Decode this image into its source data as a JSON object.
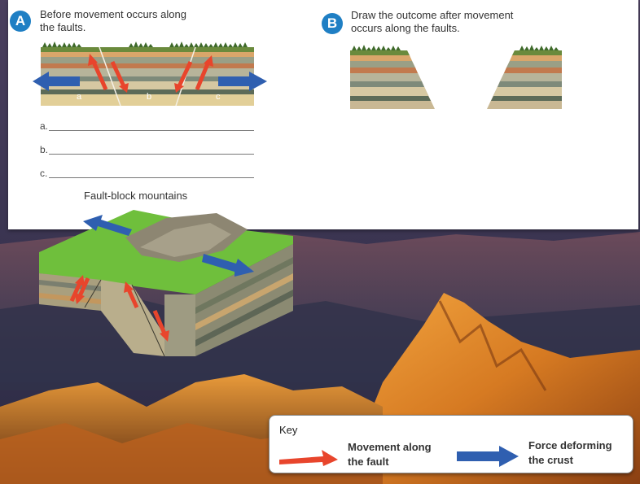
{
  "section_a": {
    "badge": "A",
    "instruction_line1": "Before movement occurs along",
    "instruction_line2": "the faults.",
    "fault_labels": [
      "a",
      "b",
      "c"
    ],
    "answer_labels": [
      "a.",
      "b.",
      "c."
    ]
  },
  "section_b": {
    "badge": "B",
    "instruction_line1": "Draw the outcome after movement",
    "instruction_line2": "occurs along the faults."
  },
  "block_caption": "Fault-block mountains",
  "key": {
    "title": "Key",
    "movement_line1": "Movement along",
    "movement_line2": "the fault",
    "force_line1": "Force deforming",
    "force_line2": "the crust"
  },
  "colors": {
    "badge": "#1f7fc4",
    "movement_arrow": "#e8452c",
    "force_arrow": "#2f5fb0"
  }
}
